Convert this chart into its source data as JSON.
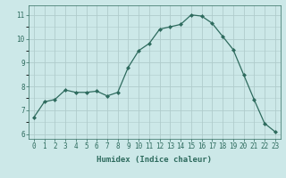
{
  "x": [
    0,
    1,
    2,
    3,
    4,
    5,
    6,
    7,
    8,
    9,
    10,
    11,
    12,
    13,
    14,
    15,
    16,
    17,
    18,
    19,
    20,
    21,
    22,
    23
  ],
  "y": [
    6.7,
    7.35,
    7.45,
    7.85,
    7.75,
    7.75,
    7.8,
    7.6,
    7.75,
    8.8,
    9.5,
    9.8,
    10.4,
    10.5,
    10.6,
    11.0,
    10.95,
    10.65,
    10.1,
    9.55,
    8.5,
    7.45,
    6.45,
    6.1
  ],
  "line_color": "#2e6b5e",
  "marker": "D",
  "marker_size": 2.0,
  "bg_color": "#cce8e8",
  "grid_color": "#b0cccc",
  "xlabel": "Humidex (Indice chaleur)",
  "xlim": [
    -0.5,
    23.5
  ],
  "ylim": [
    5.8,
    11.4
  ],
  "yticks": [
    6,
    7,
    8,
    9,
    10,
    11
  ],
  "xticks": [
    0,
    1,
    2,
    3,
    4,
    5,
    6,
    7,
    8,
    9,
    10,
    11,
    12,
    13,
    14,
    15,
    16,
    17,
    18,
    19,
    20,
    21,
    22,
    23
  ],
  "tick_color": "#2e6b5e",
  "label_fontsize": 6.5,
  "tick_fontsize": 5.5,
  "linewidth": 0.9
}
